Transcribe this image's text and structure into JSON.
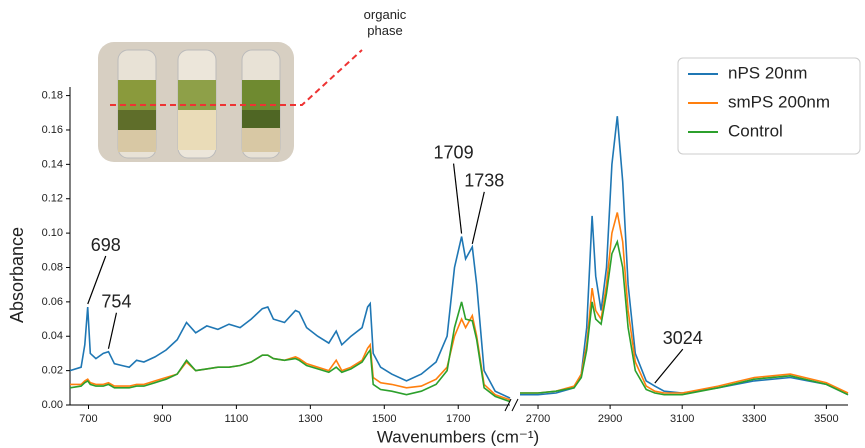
{
  "chart_data": {
    "type": "line",
    "ylabel": "Absorbance",
    "xlabel": "Wavenumbers (cm⁻¹)",
    "ylim": [
      0,
      0.185
    ],
    "yticks": [
      {
        "value": 0,
        "label": "0.00"
      },
      {
        "value": 0.02,
        "label": "0.02"
      },
      {
        "value": 0.04,
        "label": "0.04"
      },
      {
        "value": 0.06,
        "label": "0.06"
      },
      {
        "value": 0.08,
        "label": "0.08"
      },
      {
        "value": 0.1,
        "label": "0.10"
      },
      {
        "value": 0.12,
        "label": "0.12"
      },
      {
        "value": 0.14,
        "label": "0.14"
      },
      {
        "value": 0.16,
        "label": "0.16"
      },
      {
        "value": 0.18,
        "label": "0.18"
      }
    ],
    "legend": "upper right",
    "series": [
      {
        "name": "nPS 20nm",
        "color": "#1f77b4"
      },
      {
        "name": "smPS 200nm",
        "color": "#ff7f0e"
      },
      {
        "name": "Control",
        "color": "#2ca02c"
      }
    ],
    "panels": [
      {
        "xlim": [
          650,
          1840
        ],
        "xticks": [
          700,
          900,
          1100,
          1300,
          1500,
          1700
        ],
        "x": [
          650,
          680,
          690,
          698,
          705,
          720,
          740,
          754,
          770,
          790,
          810,
          830,
          850,
          880,
          910,
          940,
          965,
          990,
          1020,
          1050,
          1080,
          1110,
          1140,
          1170,
          1185,
          1200,
          1230,
          1260,
          1270,
          1290,
          1320,
          1350,
          1370,
          1385,
          1410,
          1440,
          1455,
          1462,
          1470,
          1490,
          1520,
          1560,
          1600,
          1640,
          1670,
          1690,
          1709,
          1720,
          1738,
          1750,
          1770,
          1800,
          1840
        ],
        "values": [
          [
            0.02,
            0.022,
            0.035,
            0.057,
            0.03,
            0.027,
            0.03,
            0.031,
            0.024,
            0.023,
            0.022,
            0.026,
            0.025,
            0.028,
            0.032,
            0.038,
            0.048,
            0.042,
            0.046,
            0.044,
            0.047,
            0.045,
            0.05,
            0.056,
            0.057,
            0.05,
            0.048,
            0.055,
            0.054,
            0.045,
            0.04,
            0.036,
            0.043,
            0.035,
            0.04,
            0.045,
            0.057,
            0.059,
            0.03,
            0.022,
            0.018,
            0.014,
            0.018,
            0.025,
            0.04,
            0.08,
            0.098,
            0.085,
            0.092,
            0.07,
            0.02,
            0.008,
            0.004
          ],
          [
            0.012,
            0.012,
            0.014,
            0.015,
            0.013,
            0.012,
            0.012,
            0.013,
            0.011,
            0.011,
            0.011,
            0.012,
            0.012,
            0.014,
            0.016,
            0.018,
            0.025,
            0.02,
            0.021,
            0.022,
            0.022,
            0.023,
            0.025,
            0.029,
            0.029,
            0.027,
            0.026,
            0.028,
            0.027,
            0.024,
            0.022,
            0.02,
            0.026,
            0.02,
            0.022,
            0.026,
            0.033,
            0.035,
            0.016,
            0.013,
            0.012,
            0.01,
            0.011,
            0.015,
            0.022,
            0.04,
            0.05,
            0.045,
            0.052,
            0.04,
            0.012,
            0.006,
            0.003
          ],
          [
            0.01,
            0.011,
            0.013,
            0.014,
            0.012,
            0.011,
            0.011,
            0.012,
            0.01,
            0.01,
            0.01,
            0.011,
            0.011,
            0.013,
            0.015,
            0.018,
            0.026,
            0.02,
            0.021,
            0.022,
            0.022,
            0.023,
            0.025,
            0.029,
            0.029,
            0.027,
            0.026,
            0.027,
            0.026,
            0.023,
            0.021,
            0.019,
            0.022,
            0.019,
            0.021,
            0.025,
            0.03,
            0.032,
            0.012,
            0.009,
            0.008,
            0.006,
            0.008,
            0.012,
            0.02,
            0.045,
            0.06,
            0.05,
            0.049,
            0.038,
            0.01,
            0.005,
            0.002
          ]
        ]
      },
      {
        "xlim": [
          2650,
          3560
        ],
        "xticks": [
          2700,
          2900,
          3100,
          3300,
          3500
        ],
        "x": [
          2650,
          2700,
          2750,
          2800,
          2820,
          2835,
          2850,
          2860,
          2875,
          2890,
          2905,
          2920,
          2935,
          2950,
          2970,
          3000,
          3024,
          3050,
          3100,
          3200,
          3300,
          3400,
          3500,
          3560
        ],
        "values": [
          [
            0.006,
            0.006,
            0.007,
            0.01,
            0.018,
            0.045,
            0.11,
            0.075,
            0.055,
            0.08,
            0.14,
            0.168,
            0.13,
            0.07,
            0.03,
            0.014,
            0.011,
            0.008,
            0.007,
            0.01,
            0.014,
            0.016,
            0.012,
            0.006
          ],
          [
            0.007,
            0.007,
            0.008,
            0.011,
            0.018,
            0.035,
            0.068,
            0.055,
            0.05,
            0.07,
            0.1,
            0.112,
            0.095,
            0.055,
            0.025,
            0.011,
            0.008,
            0.007,
            0.007,
            0.011,
            0.016,
            0.018,
            0.013,
            0.007
          ],
          [
            0.007,
            0.007,
            0.008,
            0.01,
            0.016,
            0.032,
            0.06,
            0.05,
            0.047,
            0.065,
            0.088,
            0.095,
            0.08,
            0.045,
            0.02,
            0.009,
            0.007,
            0.006,
            0.006,
            0.01,
            0.015,
            0.017,
            0.012,
            0.006
          ]
        ]
      }
    ],
    "annotations": [
      {
        "x": 698,
        "y": 0.057
      },
      {
        "x": 754,
        "y": 0.031
      },
      {
        "x": 1709,
        "y": 0.098
      },
      {
        "x": 1738,
        "y": 0.092
      },
      {
        "x": 3024,
        "y": 0.011
      }
    ],
    "inset_label": "organic phase"
  }
}
